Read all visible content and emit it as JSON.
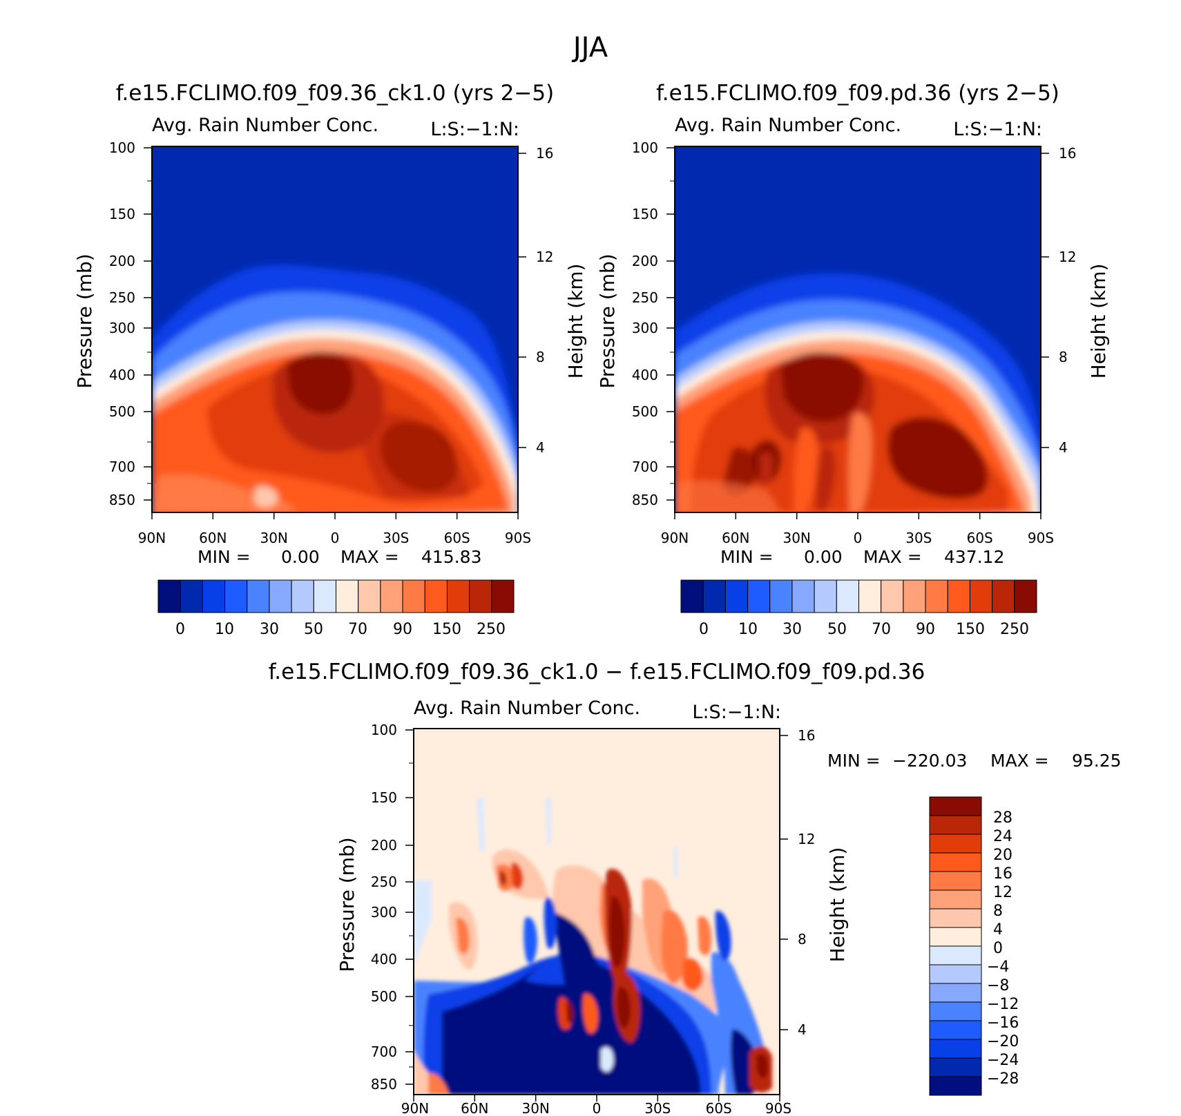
{
  "page_title": "JJA",
  "colors": {
    "cb1": [
      "#000e7e",
      "#0029b0",
      "#0840e8",
      "#1e5cff",
      "#4a82ff",
      "#86a8ff",
      "#b4caff",
      "#dbe9ff",
      "#ffeede",
      "#ffc8ac",
      "#ffa279",
      "#ff7a45",
      "#ff5a1e",
      "#e23c0a",
      "#b92708",
      "#8a0b03"
    ],
    "cb2": [
      "#000e7e",
      "#0029b0",
      "#0840e8",
      "#1e5cff",
      "#4a82ff",
      "#86a8ff",
      "#b4caff",
      "#dbe9ff",
      "#ffeede",
      "#ffc8ac",
      "#ffa279",
      "#ff7a45",
      "#ff5a1e",
      "#e23c0a",
      "#b92708",
      "#8a0b03"
    ]
  },
  "chart_data": [
    {
      "id": "panel1",
      "type": "contour",
      "title": "f.e15.FCLIMO.f09_f09.36_ck1.0 (yrs 2-5)",
      "subtitle": "Avg. Rain Number Conc.",
      "corner_label": "L:S:-1:N:",
      "xlabel": "",
      "ylabel": "Pressure (mb)",
      "y2label": "Height (km)",
      "x_ticks": [
        "90N",
        "60N",
        "30N",
        "0",
        "30S",
        "60S",
        "90S"
      ],
      "y_ticks": [
        "100",
        "150",
        "200",
        "250",
        "300",
        "400",
        "500",
        "700",
        "850"
      ],
      "y2_ticks": [
        "16",
        "12",
        "8",
        "4"
      ],
      "min_label": "MIN =",
      "min_value": "0.00",
      "max_label": "MAX =",
      "max_value": "415.83",
      "colorbar_labels": [
        "0",
        "10",
        "30",
        "50",
        "70",
        "90",
        "150",
        "250"
      ]
    },
    {
      "id": "panel2",
      "type": "contour",
      "title": "f.e15.FCLIMO.f09_f09.pd.36 (yrs 2-5)",
      "subtitle": "Avg. Rain Number Conc.",
      "corner_label": "L:S:-1:N:",
      "xlabel": "",
      "ylabel": "Pressure (mb)",
      "y2label": "Height (km)",
      "x_ticks": [
        "90N",
        "60N",
        "30N",
        "0",
        "30S",
        "60S",
        "90S"
      ],
      "y_ticks": [
        "100",
        "150",
        "200",
        "250",
        "300",
        "400",
        "500",
        "700",
        "850"
      ],
      "y2_ticks": [
        "16",
        "12",
        "8",
        "4"
      ],
      "min_label": "MIN =",
      "min_value": "0.00",
      "max_label": "MAX =",
      "max_value": "437.12",
      "colorbar_labels": [
        "0",
        "10",
        "30",
        "50",
        "70",
        "90",
        "150",
        "250"
      ]
    },
    {
      "id": "panel3",
      "type": "contour",
      "title": "f.e15.FCLIMO.f09_f09.36_ck1.0 - f.e15.FCLIMO.f09_f09.pd.36",
      "subtitle": "Avg. Rain Number Conc.",
      "corner_label": "L:S:-1:N:",
      "xlabel": "",
      "ylabel": "Pressure (mb)",
      "y2label": "Height (km)",
      "x_ticks": [
        "90N",
        "60N",
        "30N",
        "0",
        "30S",
        "60S",
        "90S"
      ],
      "y_ticks": [
        "100",
        "150",
        "200",
        "250",
        "300",
        "400",
        "500",
        "700",
        "850"
      ],
      "y2_ticks": [
        "16",
        "12",
        "8",
        "4"
      ],
      "min_label": "MIN =",
      "min_value": "-220.03",
      "max_label": "MAX =",
      "max_value": "95.25",
      "colorbar_labels": [
        "28",
        "24",
        "20",
        "16",
        "12",
        "8",
        "4",
        "0",
        "-4",
        "-8",
        "-12",
        "-16",
        "-20",
        "-24",
        "-28"
      ]
    }
  ]
}
